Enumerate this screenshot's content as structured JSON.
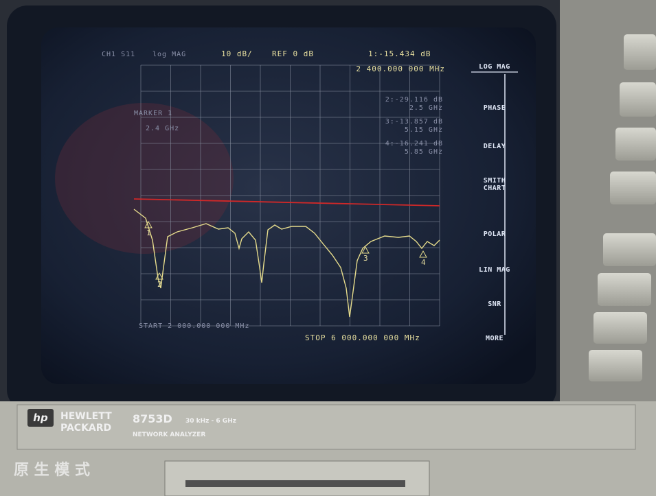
{
  "header": {
    "channel": "CH1 S11",
    "format": "log MAG",
    "scale": "10 dB/",
    "reference": "REF 0 dB",
    "active_marker": "1:-15.434 dB",
    "active_marker_freq": "2 400.000 000 MHz"
  },
  "marker_box": {
    "title": "MARKER 1",
    "freq": "2.4 GHz"
  },
  "marker_list": [
    {
      "value": "2:-29.116 dB",
      "freq": "2.5 GHz"
    },
    {
      "value": "3:-13.857 dB",
      "freq": "5.15 GHz"
    },
    {
      "value": "4:-16.241 dB",
      "freq": "5.85 GHz"
    }
  ],
  "trace_markers": [
    "1",
    "2",
    "3",
    "4"
  ],
  "footer": {
    "start": "START 2 000.000 000 MHz",
    "stop": "STOP 6 000.000 000 MHz"
  },
  "softkeys": [
    [
      "LOG MAG"
    ],
    [
      "PHASE"
    ],
    [
      "DELAY"
    ],
    [
      "SMITH",
      "CHART"
    ],
    [
      "POLAR"
    ],
    [
      "LIN MAG"
    ],
    [
      "SNR"
    ],
    [
      "MORE"
    ]
  ],
  "brand": {
    "logo": "hp",
    "name_line1": "HEWLETT",
    "name_line2": "PACKARD",
    "model": "8753D",
    "range": "30 kHz - 6 GHz",
    "type": "NETWORK ANALYZER"
  },
  "watermark": "原 生 模 式"
}
